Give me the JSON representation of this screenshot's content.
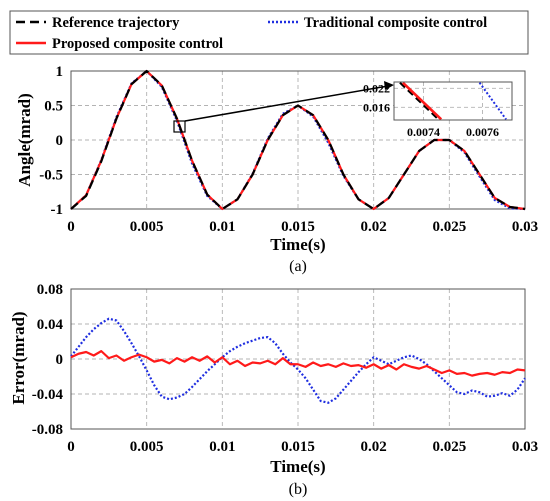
{
  "colors": {
    "reference": "#000000",
    "traditional": "#1f2ee0",
    "proposed": "#ff1a1a"
  },
  "captions": {
    "a": "(a)",
    "b": "(b)"
  },
  "legend": {
    "reference": "Reference trajectory",
    "traditional": "Traditional composite control",
    "proposed": "Proposed composite control"
  },
  "chart_data": [
    {
      "id": "a",
      "type": "line",
      "title": "",
      "xlabel": "Time(s)",
      "ylabel": "Angle(mrad)",
      "xlim": [
        0,
        0.03
      ],
      "ylim": [
        -1,
        1
      ],
      "xticks": [
        "0",
        "0.005",
        "0.01",
        "0.015",
        "0.02",
        "0.025",
        "0.03"
      ],
      "yticks": [
        "-1",
        "-0.5",
        "0",
        "0.5",
        "1"
      ],
      "grid": true,
      "legend_position": "top",
      "series": [
        {
          "name": "Reference trajectory",
          "style": "dashed",
          "color": "#000000",
          "x": [
            0,
            0.001,
            0.002,
            0.003,
            0.004,
            0.005,
            0.006,
            0.007,
            0.008,
            0.009,
            0.01,
            0.011,
            0.012,
            0.013,
            0.014,
            0.015,
            0.016,
            0.017,
            0.018,
            0.019,
            0.02,
            0.021,
            0.022,
            0.023,
            0.024,
            0.025,
            0.026,
            0.027,
            0.028,
            0.029,
            0.03
          ],
          "y": [
            -1,
            -0.81,
            -0.31,
            0.31,
            0.81,
            1,
            0.79,
            0.31,
            -0.3,
            -0.79,
            -1,
            -0.86,
            -0.5,
            0,
            0.36,
            0.5,
            0.36,
            0,
            -0.5,
            -0.86,
            -1,
            -0.84,
            -0.5,
            -0.16,
            0,
            0,
            -0.16,
            -0.5,
            -0.84,
            -0.97,
            -1
          ]
        },
        {
          "name": "Traditional composite control",
          "style": "dotted",
          "color": "#1f2ee0",
          "x": [
            0,
            0.001,
            0.002,
            0.003,
            0.004,
            0.005,
            0.006,
            0.007,
            0.008,
            0.009,
            0.01,
            0.011,
            0.012,
            0.013,
            0.014,
            0.015,
            0.016,
            0.017,
            0.018,
            0.019,
            0.02,
            0.021,
            0.022,
            0.023,
            0.024,
            0.025,
            0.026,
            0.027,
            0.028,
            0.029,
            0.03
          ],
          "y": [
            -1,
            -0.8,
            -0.29,
            0.33,
            0.82,
            1,
            0.77,
            0.28,
            -0.34,
            -0.81,
            -1,
            -0.86,
            -0.49,
            0.02,
            0.38,
            0.5,
            0.34,
            -0.04,
            -0.52,
            -0.86,
            -1,
            -0.84,
            -0.5,
            -0.16,
            0,
            0,
            -0.18,
            -0.53,
            -0.87,
            -0.99,
            -1
          ]
        },
        {
          "name": "Proposed composite control",
          "style": "solid",
          "color": "#ff1a1a",
          "x": [
            0,
            0.001,
            0.002,
            0.003,
            0.004,
            0.005,
            0.006,
            0.007,
            0.008,
            0.009,
            0.01,
            0.011,
            0.012,
            0.013,
            0.014,
            0.015,
            0.016,
            0.017,
            0.018,
            0.019,
            0.02,
            0.021,
            0.022,
            0.023,
            0.024,
            0.025,
            0.026,
            0.027,
            0.028,
            0.029,
            0.03
          ],
          "y": [
            -1,
            -0.8,
            -0.3,
            0.31,
            0.81,
            1,
            0.79,
            0.31,
            -0.3,
            -0.79,
            -1,
            -0.86,
            -0.5,
            0,
            0.36,
            0.5,
            0.36,
            0,
            -0.5,
            -0.86,
            -1,
            -0.84,
            -0.5,
            -0.16,
            0,
            0,
            -0.16,
            -0.5,
            -0.84,
            -0.97,
            -1
          ]
        }
      ],
      "inset": {
        "xlim": [
          0.0073,
          0.0077
        ],
        "ylim": [
          0.012,
          0.024
        ],
        "xticks": [
          "0.0074",
          "0.0076"
        ],
        "yticks": [
          "0.022",
          "0.016"
        ],
        "series": [
          {
            "name": "Reference trajectory",
            "x": [
              0.00732,
              0.00745
            ],
            "y": [
              0.0238,
              0.0122
            ]
          },
          {
            "name": "Proposed composite control",
            "x": [
              0.00733,
              0.00746
            ],
            "y": [
              0.0238,
              0.0122
            ]
          },
          {
            "name": "Traditional composite control",
            "x": [
              0.00759,
              0.00768
            ],
            "y": [
              0.0238,
              0.0122
            ]
          }
        ]
      }
    },
    {
      "id": "b",
      "type": "line",
      "title": "",
      "xlabel": "Time(s)",
      "ylabel": "Error(mrad)",
      "xlim": [
        0,
        0.03
      ],
      "ylim": [
        -0.08,
        0.08
      ],
      "xticks": [
        "0",
        "0.005",
        "0.01",
        "0.015",
        "0.02",
        "0.025",
        "0.03"
      ],
      "yticks": [
        "0.08",
        "0.04",
        "0",
        "-0.04",
        "-0.08"
      ],
      "grid": true,
      "series": [
        {
          "name": "Traditional composite control",
          "style": "dotted",
          "color": "#1f2ee0",
          "x": [
            0,
            0.0005,
            0.001,
            0.0015,
            0.002,
            0.0025,
            0.003,
            0.0035,
            0.004,
            0.0045,
            0.005,
            0.0055,
            0.006,
            0.0065,
            0.007,
            0.0075,
            0.008,
            0.0085,
            0.009,
            0.0095,
            0.01,
            0.0105,
            0.011,
            0.0115,
            0.012,
            0.0125,
            0.013,
            0.0135,
            0.014,
            0.0145,
            0.015,
            0.0155,
            0.016,
            0.0165,
            0.017,
            0.0175,
            0.018,
            0.0185,
            0.019,
            0.0195,
            0.02,
            0.0205,
            0.021,
            0.0215,
            0.022,
            0.0225,
            0.023,
            0.0235,
            0.024,
            0.0245,
            0.025,
            0.0255,
            0.026,
            0.0265,
            0.027,
            0.0275,
            0.028,
            0.0285,
            0.029,
            0.0295,
            0.03
          ],
          "y": [
            0.003,
            0.014,
            0.025,
            0.034,
            0.041,
            0.046,
            0.044,
            0.032,
            0.018,
            0.003,
            -0.013,
            -0.03,
            -0.043,
            -0.046,
            -0.044,
            -0.04,
            -0.032,
            -0.023,
            -0.014,
            -0.006,
            0.002,
            0.009,
            0.014,
            0.018,
            0.021,
            0.024,
            0.025,
            0.018,
            0.006,
            -0.004,
            -0.012,
            -0.022,
            -0.035,
            -0.048,
            -0.05,
            -0.045,
            -0.035,
            -0.025,
            -0.015,
            -0.006,
            0.002,
            -0.002,
            -0.006,
            -0.002,
            0.002,
            0.004,
            0.0,
            -0.006,
            -0.014,
            -0.022,
            -0.03,
            -0.038,
            -0.04,
            -0.036,
            -0.038,
            -0.043,
            -0.042,
            -0.039,
            -0.042,
            -0.035,
            -0.022
          ]
        },
        {
          "name": "Proposed composite control",
          "style": "solid",
          "color": "#ff1a1a",
          "x": [
            0,
            0.0005,
            0.001,
            0.0015,
            0.002,
            0.0025,
            0.003,
            0.0035,
            0.004,
            0.0045,
            0.005,
            0.0055,
            0.006,
            0.0065,
            0.007,
            0.0075,
            0.008,
            0.0085,
            0.009,
            0.0095,
            0.01,
            0.0105,
            0.011,
            0.0115,
            0.012,
            0.0125,
            0.013,
            0.0135,
            0.014,
            0.0145,
            0.015,
            0.0155,
            0.016,
            0.0165,
            0.017,
            0.0175,
            0.018,
            0.0185,
            0.019,
            0.0195,
            0.02,
            0.0205,
            0.021,
            0.0215,
            0.022,
            0.0225,
            0.023,
            0.0235,
            0.024,
            0.0245,
            0.025,
            0.0255,
            0.026,
            0.0265,
            0.027,
            0.0275,
            0.028,
            0.0285,
            0.029,
            0.0295,
            0.03
          ],
          "y": [
            0.002,
            0.006,
            0.008,
            0.004,
            0.009,
            0.001,
            0.004,
            -0.002,
            0.002,
            0.005,
            0.002,
            -0.003,
            -0.001,
            -0.005,
            0.001,
            -0.003,
            0.002,
            -0.002,
            0.003,
            -0.004,
            0.002,
            -0.006,
            -0.002,
            -0.008,
            -0.004,
            -0.005,
            -0.002,
            -0.006,
            0.001,
            -0.006,
            -0.006,
            -0.009,
            -0.004,
            -0.008,
            -0.006,
            -0.009,
            -0.005,
            -0.008,
            -0.007,
            -0.01,
            -0.006,
            -0.011,
            -0.007,
            -0.012,
            -0.006,
            -0.009,
            -0.011,
            -0.008,
            -0.012,
            -0.016,
            -0.013,
            -0.017,
            -0.016,
            -0.019,
            -0.017,
            -0.016,
            -0.018,
            -0.015,
            -0.016,
            -0.012,
            -0.013
          ]
        }
      ]
    }
  ]
}
